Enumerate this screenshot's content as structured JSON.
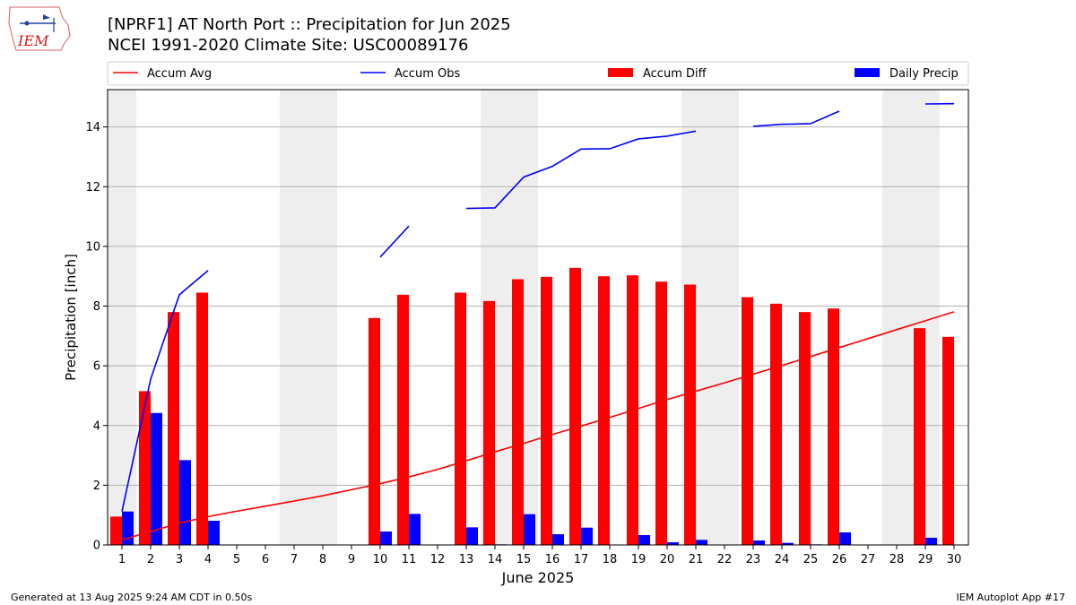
{
  "header": {
    "title": "[NPRF1] AT North Port :: Precipitation for Jun 2025",
    "subtitle": "NCEI 1991-2020 Climate Site: USC00089176",
    "logo_text": "IEM"
  },
  "footer": {
    "left": "Generated at 13 Aug 2025 9:24 AM CDT in 0.50s",
    "right": "IEM Autoplot App #17"
  },
  "colors": {
    "accum_avg": "#ff0000",
    "accum_obs": "#0000ff",
    "accum_diff": "#ff0000",
    "daily_precip": "#0000ff",
    "weekend_shade": "#eeeeee",
    "grid": "#b0b0b0"
  },
  "chart_data": {
    "type": "bar",
    "xlabel": "June 2025",
    "ylabel": "Precipitation [inch]",
    "ylim": [
      0,
      15.25
    ],
    "yticks": [
      0,
      2,
      4,
      6,
      8,
      10,
      12,
      14
    ],
    "grid": "horizontal",
    "legend_position": "top",
    "legend": [
      "Accum Avg",
      "Accum Obs",
      "Accum Diff",
      "Daily Precip"
    ],
    "categories": [
      "1",
      "2",
      "3",
      "4",
      "5",
      "6",
      "7",
      "8",
      "9",
      "10",
      "11",
      "12",
      "13",
      "14",
      "15",
      "16",
      "17",
      "18",
      "19",
      "20",
      "21",
      "22",
      "23",
      "24",
      "25",
      "26",
      "27",
      "28",
      "29",
      "30"
    ],
    "weekend_days": [
      1,
      7,
      8,
      14,
      15,
      21,
      22,
      28,
      29
    ],
    "series": [
      {
        "name": "Accum Avg",
        "kind": "line",
        "values": [
          0.17,
          0.45,
          0.73,
          0.95,
          1.13,
          1.3,
          1.47,
          1.65,
          1.85,
          2.05,
          2.28,
          2.53,
          2.82,
          3.12,
          3.4,
          3.7,
          3.98,
          4.27,
          4.57,
          4.87,
          5.15,
          5.43,
          5.72,
          6.01,
          6.31,
          6.61,
          6.91,
          7.21,
          7.51,
          7.81
        ]
      },
      {
        "name": "Accum Obs",
        "kind": "line",
        "values": [
          1.12,
          5.55,
          8.38,
          9.19,
          null,
          null,
          null,
          null,
          null,
          9.64,
          10.68,
          null,
          11.27,
          11.29,
          12.32,
          12.68,
          13.26,
          13.27,
          13.6,
          13.69,
          13.86,
          null,
          14.02,
          14.09,
          14.11,
          14.53,
          null,
          null,
          14.77,
          14.78
        ]
      },
      {
        "name": "Accum Diff",
        "kind": "bar",
        "values": [
          0.95,
          5.15,
          7.8,
          8.45,
          null,
          null,
          null,
          null,
          null,
          7.6,
          8.38,
          null,
          8.45,
          8.17,
          8.9,
          8.98,
          9.28,
          9.0,
          9.03,
          8.82,
          8.72,
          null,
          8.3,
          8.08,
          7.8,
          7.92,
          null,
          null,
          7.26,
          6.97
        ]
      },
      {
        "name": "Daily Precip",
        "kind": "bar",
        "values": [
          1.12,
          4.42,
          2.84,
          0.81,
          0,
          0,
          0,
          0,
          0,
          0.45,
          1.04,
          0,
          0.59,
          0.02,
          1.03,
          0.36,
          0.58,
          0.01,
          0.33,
          0.09,
          0.17,
          0,
          0.15,
          0.07,
          0.02,
          0.42,
          0,
          0,
          0.24,
          0.01
        ]
      }
    ]
  }
}
